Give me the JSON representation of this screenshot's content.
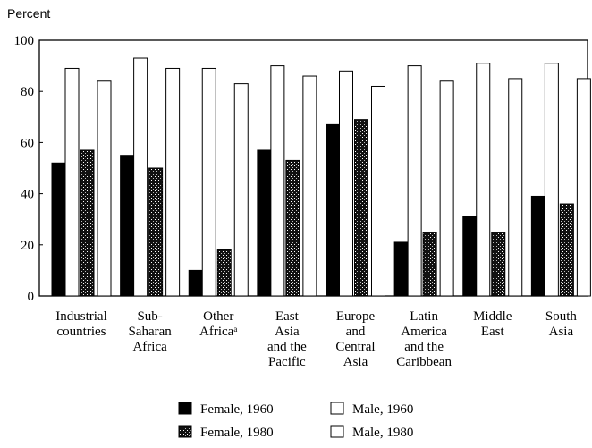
{
  "chart_data": {
    "type": "bar",
    "ylabel": "Percent",
    "ylim": [
      0,
      100
    ],
    "yticks": [
      "0",
      "20",
      "40",
      "60",
      "80",
      "100"
    ],
    "grid": false,
    "legend_placement": "bottom",
    "categories": [
      [
        "Industrial",
        "countries"
      ],
      [
        "Sub-",
        "Saharan",
        "Africa"
      ],
      [
        "Other",
        "Africaᵃ"
      ],
      [
        "East",
        "Asia",
        "and the",
        "Pacific"
      ],
      [
        "Europe",
        "and",
        "Central",
        "Asia"
      ],
      [
        "Latin",
        "America",
        "and the",
        "Caribbean"
      ],
      [
        "Middle",
        "East"
      ],
      [
        "South",
        "Asia"
      ]
    ],
    "series": [
      {
        "name": "Female, 1960",
        "fill": "solid-black",
        "values": [
          52,
          55,
          10,
          57,
          67,
          21,
          31,
          39
        ]
      },
      {
        "name": "Male, 1960",
        "fill": "white",
        "values": [
          89,
          93,
          89,
          90,
          88,
          90,
          91,
          91
        ]
      },
      {
        "name": "Female, 1980",
        "fill": "stippled",
        "values": [
          57,
          50,
          18,
          53,
          69,
          25,
          25,
          36
        ]
      },
      {
        "name": "Male, 1980",
        "fill": "white",
        "values": [
          84,
          89,
          83,
          86,
          82,
          84,
          85,
          85
        ]
      }
    ],
    "legend_order": [
      0,
      2,
      1,
      3
    ]
  }
}
